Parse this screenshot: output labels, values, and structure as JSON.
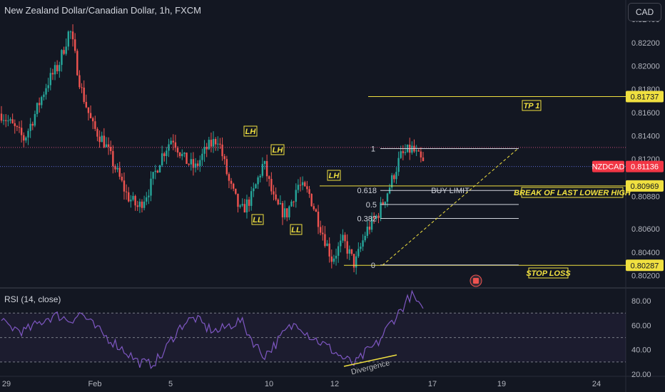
{
  "header": {
    "title": "New Zealand Dollar/Canadian Dollar, 1h, FXCM",
    "currency": "CAD"
  },
  "colors": {
    "bg": "#131722",
    "up": "#26a69a",
    "down": "#ef5350",
    "annotation": "#f0e040",
    "rsi_line": "#7e57c2",
    "grid": "#2a2e39",
    "axis_text": "#b2b5be"
  },
  "price_axis": {
    "ticks": [
      "0.82400",
      "0.82200",
      "0.82000",
      "0.81800",
      "0.81600",
      "0.81400",
      "0.81200",
      "0.80880",
      "0.80600",
      "0.80400",
      "0.80200"
    ]
  },
  "price_labels": {
    "tp1": "0.81737",
    "symbol_name": "NZDCAD",
    "current": "0.81136",
    "break_level": "0.80969",
    "stop_level": "0.80287"
  },
  "time_axis": {
    "labels": [
      "29",
      "Feb",
      "5",
      "10",
      "12",
      "17",
      "19",
      "24"
    ]
  },
  "fib": {
    "levels": [
      "1",
      "0.618",
      "0.5",
      "0.382",
      "0"
    ]
  },
  "annotations": {
    "tp1": "TP 1",
    "buy_limit": "BUY LIMIT",
    "break_label": "BREAK OF LAST LOWER HIGH",
    "stop_loss": "STOP LOSS",
    "lh1": "LH",
    "lh2": "LH",
    "lh3": "LH",
    "ll1": "LL",
    "ll2": "LL",
    "divergence": "Divergence"
  },
  "rsi": {
    "label": "RSI (14, close)",
    "ticks": [
      "80.00",
      "60.00",
      "40.00",
      "20.00"
    ]
  },
  "chart_data": {
    "type": "candlestick",
    "symbol": "NZDCAD",
    "timeframe": "1h",
    "ylim": [
      0.8016,
      0.8245
    ],
    "x_labels": [
      "29",
      "Feb",
      "5",
      "10",
      "12",
      "17",
      "19",
      "24"
    ],
    "price_path": [
      [
        "29",
        0.8159
      ],
      [
        "",
        0.8148
      ],
      [
        "",
        0.8137
      ],
      [
        "",
        0.816
      ],
      [
        "",
        0.8185
      ],
      [
        "Feb",
        0.82
      ],
      [
        "",
        0.8232
      ],
      [
        "",
        0.818
      ],
      [
        "",
        0.8148
      ],
      [
        "",
        0.8135
      ],
      [
        "",
        0.8112
      ],
      [
        "",
        0.8089
      ],
      [
        "",
        0.8078
      ],
      [
        "5",
        0.8095
      ],
      [
        "",
        0.8122
      ],
      [
        "",
        0.8139
      ],
      [
        "",
        0.812
      ],
      [
        "",
        0.8112
      ],
      [
        "",
        0.8129
      ],
      [
        "",
        0.8138
      ],
      [
        "",
        0.8099
      ],
      [
        "",
        0.8074
      ],
      [
        "10",
        0.8088
      ],
      [
        "",
        0.8117
      ],
      [
        "",
        0.8081
      ],
      [
        "",
        0.8072
      ],
      [
        "",
        0.8098
      ],
      [
        "12",
        0.809
      ],
      [
        "",
        0.8062
      ],
      [
        "",
        0.8034
      ],
      [
        "",
        0.805
      ],
      [
        "",
        0.8029
      ],
      [
        "",
        0.8058
      ],
      [
        "",
        0.8072
      ],
      [
        "",
        0.8095
      ],
      [
        "",
        0.8122
      ],
      [
        "",
        0.8129
      ],
      [
        "17",
        0.8116
      ]
    ],
    "horizontal_levels": [
      {
        "name": "TP 1",
        "value": 0.81737
      },
      {
        "name": "BREAK OF LAST LOWER HIGH",
        "value": 0.80969
      },
      {
        "name": "STOP LOSS",
        "value": 0.80287
      }
    ],
    "fibonacci": [
      {
        "level": "1",
        "price": 0.8129
      },
      {
        "level": "0.618",
        "price": 0.8093
      },
      {
        "level": "0.5",
        "price": 0.8081
      },
      {
        "level": "0.382",
        "price": 0.8069
      },
      {
        "level": "0",
        "price": 0.8029
      }
    ],
    "rsi_series": [
      62,
      58,
      55,
      60,
      66,
      68,
      64,
      70,
      60,
      52,
      45,
      38,
      30,
      28,
      34,
      50,
      62,
      66,
      58,
      55,
      60,
      64,
      48,
      35,
      44,
      56,
      62,
      52,
      46,
      40,
      33,
      28,
      38,
      45,
      60,
      72,
      86,
      70
    ],
    "rsi_ylim": [
      20,
      90
    ],
    "rsi_levels": [
      70,
      50,
      30
    ]
  }
}
